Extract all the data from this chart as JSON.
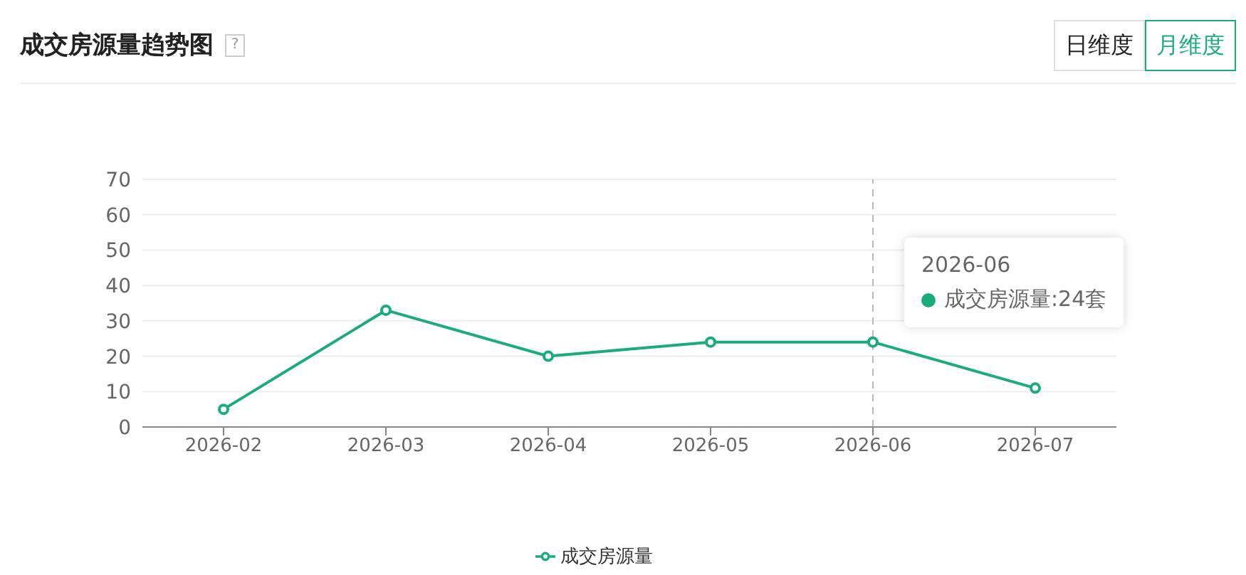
{
  "chart_data": {
    "type": "line",
    "title": "成交房源量趋势图",
    "categories": [
      "2026-02",
      "2026-03",
      "2026-04",
      "2026-05",
      "2026-06",
      "2026-07"
    ],
    "series": [
      {
        "name": "成交房源量",
        "color": "#1aad7a",
        "values": [
          5,
          33,
          20,
          24,
          24,
          11
        ]
      }
    ],
    "ylim": [
      0,
      70
    ],
    "yticks": [
      0,
      10,
      20,
      30,
      40,
      50,
      60,
      70
    ],
    "grid": "y",
    "legend": "bottom",
    "marker": "circle",
    "line_style": "solid",
    "ref_lines": [
      {
        "axis": "x",
        "value": "2026-06",
        "color": "#bbbbbb",
        "line_style": "dashed"
      }
    ],
    "annotations": [
      "?",
      "日维度",
      "月维度",
      "2026-06",
      "成交房源量:24套"
    ]
  }
}
